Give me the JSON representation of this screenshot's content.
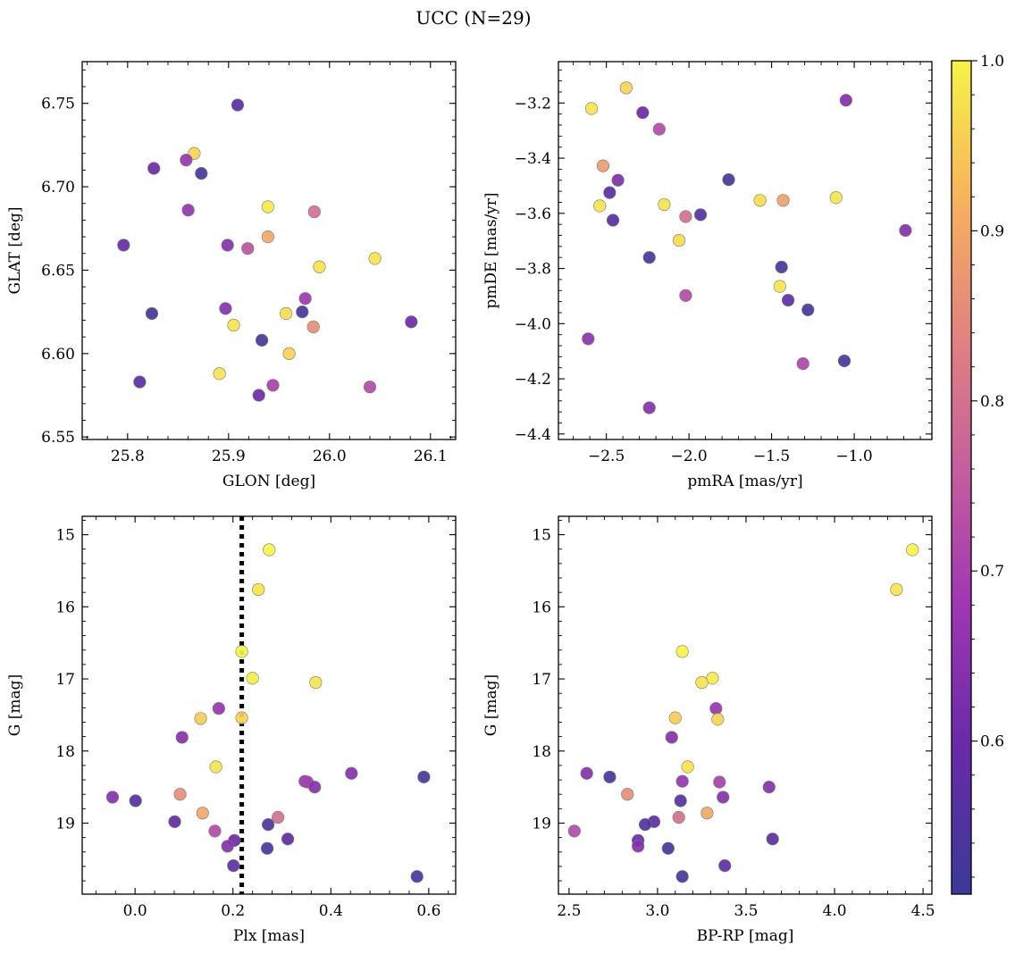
{
  "title": "UCC (N=29)",
  "colorbar": {
    "cmap": "plasma",
    "range": [
      0.51,
      1.0
    ],
    "ticks": [
      0.6,
      0.7,
      0.8,
      0.9,
      1.0
    ],
    "tick_labels": [
      "0.6",
      "0.7",
      "0.8",
      "0.9",
      "1.0"
    ]
  },
  "chart_data": [
    {
      "type": "scatter",
      "panel": "top-left",
      "xlabel": "GLON [deg]",
      "ylabel": "GLAT [deg]",
      "xlim": [
        25.755,
        26.125
      ],
      "ylim": [
        6.5485,
        6.775
      ],
      "xticks": [
        25.8,
        25.9,
        26.0,
        26.1
      ],
      "xtick_labels": [
        "25.8",
        "25.9",
        "26.0",
        "26.1"
      ],
      "yticks": [
        6.55,
        6.6,
        6.65,
        6.7,
        6.75
      ],
      "ytick_labels": [
        "6.55",
        "6.60",
        "6.65",
        "6.70",
        "6.75"
      ],
      "invert_y": false,
      "vline": null,
      "points": [
        {
          "x": 25.909,
          "y": 6.749,
          "c": 0.57
        },
        {
          "x": 25.866,
          "y": 6.72,
          "c": 0.96
        },
        {
          "x": 25.858,
          "y": 6.716,
          "c": 0.67
        },
        {
          "x": 25.826,
          "y": 6.711,
          "c": 0.6
        },
        {
          "x": 25.873,
          "y": 6.708,
          "c": 0.53
        },
        {
          "x": 25.939,
          "y": 6.688,
          "c": 0.99
        },
        {
          "x": 25.86,
          "y": 6.686,
          "c": 0.66
        },
        {
          "x": 25.985,
          "y": 6.685,
          "c": 0.8
        },
        {
          "x": 25.939,
          "y": 6.67,
          "c": 0.9
        },
        {
          "x": 25.796,
          "y": 6.665,
          "c": 0.59
        },
        {
          "x": 25.899,
          "y": 6.665,
          "c": 0.64
        },
        {
          "x": 25.919,
          "y": 6.663,
          "c": 0.74
        },
        {
          "x": 26.045,
          "y": 6.657,
          "c": 0.98
        },
        {
          "x": 25.99,
          "y": 6.652,
          "c": 0.98
        },
        {
          "x": 25.976,
          "y": 6.633,
          "c": 0.68
        },
        {
          "x": 25.897,
          "y": 6.627,
          "c": 0.64
        },
        {
          "x": 25.824,
          "y": 6.624,
          "c": 0.52
        },
        {
          "x": 25.957,
          "y": 6.624,
          "c": 0.97
        },
        {
          "x": 25.973,
          "y": 6.625,
          "c": 0.53
        },
        {
          "x": 26.081,
          "y": 6.619,
          "c": 0.6
        },
        {
          "x": 25.905,
          "y": 6.617,
          "c": 0.98
        },
        {
          "x": 25.984,
          "y": 6.616,
          "c": 0.86
        },
        {
          "x": 25.933,
          "y": 6.608,
          "c": 0.54
        },
        {
          "x": 25.96,
          "y": 6.6,
          "c": 0.96
        },
        {
          "x": 25.891,
          "y": 6.588,
          "c": 0.98
        },
        {
          "x": 25.812,
          "y": 6.583,
          "c": 0.57
        },
        {
          "x": 25.944,
          "y": 6.581,
          "c": 0.7
        },
        {
          "x": 26.04,
          "y": 6.58,
          "c": 0.72
        },
        {
          "x": 25.93,
          "y": 6.575,
          "c": 0.6
        }
      ]
    },
    {
      "type": "scatter",
      "panel": "top-right",
      "xlabel": "pmRA [mas/yr]",
      "ylabel": "pmDE [mas/yr]",
      "xlim": [
        -2.79,
        -0.53
      ],
      "ylim": [
        -4.42,
        -3.05
      ],
      "xticks": [
        -2.5,
        -2.0,
        -1.5,
        -1.0
      ],
      "xtick_labels": [
        "−2.5",
        "−2.0",
        "−1.5",
        "−1.0"
      ],
      "yticks": [
        -4.4,
        -4.2,
        -4.0,
        -3.8,
        -3.6,
        -3.4,
        -3.2
      ],
      "ytick_labels": [
        "−4.4",
        "−4.2",
        "−4.0",
        "−3.8",
        "−3.6",
        "−3.4",
        "−3.2"
      ],
      "invert_y": false,
      "vline": null,
      "points": [
        {
          "x": -2.38,
          "y": -3.145,
          "c": 0.96
        },
        {
          "x": -2.59,
          "y": -3.22,
          "c": 0.98
        },
        {
          "x": -2.28,
          "y": -3.235,
          "c": 0.6
        },
        {
          "x": -1.05,
          "y": -3.19,
          "c": 0.64
        },
        {
          "x": -2.18,
          "y": -3.295,
          "c": 0.72
        },
        {
          "x": -2.52,
          "y": -3.428,
          "c": 0.88
        },
        {
          "x": -2.43,
          "y": -3.48,
          "c": 0.63
        },
        {
          "x": -1.76,
          "y": -3.478,
          "c": 0.53
        },
        {
          "x": -2.48,
          "y": -3.525,
          "c": 0.57
        },
        {
          "x": -1.57,
          "y": -3.553,
          "c": 0.97
        },
        {
          "x": -1.43,
          "y": -3.553,
          "c": 0.89
        },
        {
          "x": -1.11,
          "y": -3.543,
          "c": 0.98
        },
        {
          "x": -2.54,
          "y": -3.573,
          "c": 0.98
        },
        {
          "x": -2.15,
          "y": -3.568,
          "c": 0.98
        },
        {
          "x": -2.46,
          "y": -3.625,
          "c": 0.56
        },
        {
          "x": -2.02,
          "y": -3.612,
          "c": 0.8
        },
        {
          "x": -1.93,
          "y": -3.605,
          "c": 0.56
        },
        {
          "x": -0.69,
          "y": -3.662,
          "c": 0.64
        },
        {
          "x": -2.06,
          "y": -3.698,
          "c": 0.97
        },
        {
          "x": -2.24,
          "y": -3.76,
          "c": 0.54
        },
        {
          "x": -1.44,
          "y": -3.795,
          "c": 0.53
        },
        {
          "x": -1.45,
          "y": -3.865,
          "c": 0.98
        },
        {
          "x": -2.02,
          "y": -3.898,
          "c": 0.72
        },
        {
          "x": -1.4,
          "y": -3.915,
          "c": 0.58
        },
        {
          "x": -1.28,
          "y": -3.95,
          "c": 0.53
        },
        {
          "x": -2.61,
          "y": -4.055,
          "c": 0.65
        },
        {
          "x": -1.31,
          "y": -4.145,
          "c": 0.71
        },
        {
          "x": -1.06,
          "y": -4.135,
          "c": 0.53
        },
        {
          "x": -2.24,
          "y": -4.305,
          "c": 0.64
        }
      ]
    },
    {
      "type": "scatter",
      "panel": "bottom-left",
      "xlabel": "Plx [mas]",
      "ylabel": "G [mag]",
      "xlim": [
        -0.108,
        0.655
      ],
      "ylim": [
        19.985,
        14.745
      ],
      "xticks": [
        0.0,
        0.2,
        0.4,
        0.6
      ],
      "xtick_labels": [
        "0.0",
        "0.2",
        "0.4",
        "0.6"
      ],
      "yticks": [
        15,
        16,
        17,
        18,
        19
      ],
      "ytick_labels": [
        "15",
        "16",
        "17",
        "18",
        "19"
      ],
      "invert_y": true,
      "vline": 0.218,
      "points": [
        {
          "x": 0.274,
          "y": 15.21,
          "c": 1.0
        },
        {
          "x": 0.252,
          "y": 15.76,
          "c": 0.98
        },
        {
          "x": 0.218,
          "y": 16.62,
          "c": 1.0
        },
        {
          "x": 0.24,
          "y": 16.99,
          "c": 0.99
        },
        {
          "x": 0.369,
          "y": 17.05,
          "c": 0.98
        },
        {
          "x": 0.171,
          "y": 17.41,
          "c": 0.67
        },
        {
          "x": 0.134,
          "y": 17.55,
          "c": 0.95
        },
        {
          "x": 0.218,
          "y": 17.54,
          "c": 0.96
        },
        {
          "x": 0.096,
          "y": 17.81,
          "c": 0.64
        },
        {
          "x": 0.165,
          "y": 18.22,
          "c": 0.98
        },
        {
          "x": 0.442,
          "y": 18.31,
          "c": 0.64
        },
        {
          "x": 0.59,
          "y": 18.36,
          "c": 0.53
        },
        {
          "x": 0.347,
          "y": 18.42,
          "c": 0.67
        },
        {
          "x": 0.352,
          "y": 18.43,
          "c": 0.7
        },
        {
          "x": 0.367,
          "y": 18.5,
          "c": 0.64
        },
        {
          "x": -0.046,
          "y": 18.64,
          "c": 0.64
        },
        {
          "x": 0.001,
          "y": 18.69,
          "c": 0.56
        },
        {
          "x": 0.092,
          "y": 18.6,
          "c": 0.86
        },
        {
          "x": 0.138,
          "y": 18.86,
          "c": 0.9
        },
        {
          "x": 0.292,
          "y": 18.92,
          "c": 0.8
        },
        {
          "x": 0.081,
          "y": 18.98,
          "c": 0.57
        },
        {
          "x": 0.272,
          "y": 19.02,
          "c": 0.55
        },
        {
          "x": 0.163,
          "y": 19.11,
          "c": 0.72
        },
        {
          "x": 0.312,
          "y": 19.22,
          "c": 0.57
        },
        {
          "x": 0.203,
          "y": 19.24,
          "c": 0.6
        },
        {
          "x": 0.189,
          "y": 19.32,
          "c": 0.64
        },
        {
          "x": 0.27,
          "y": 19.35,
          "c": 0.54
        },
        {
          "x": 0.201,
          "y": 19.59,
          "c": 0.58
        },
        {
          "x": 0.576,
          "y": 19.74,
          "c": 0.54
        }
      ]
    },
    {
      "type": "scatter",
      "panel": "bottom-right",
      "xlabel": "BP-RP [mag]",
      "ylabel": "G [mag]",
      "xlim": [
        2.44,
        4.55
      ],
      "ylim": [
        19.985,
        14.745
      ],
      "xticks": [
        2.5,
        3.0,
        3.5,
        4.0,
        4.5
      ],
      "xtick_labels": [
        "2.5",
        "3.0",
        "3.5",
        "4.0",
        "4.5"
      ],
      "yticks": [
        15,
        16,
        17,
        18,
        19
      ],
      "ytick_labels": [
        "15",
        "16",
        "17",
        "18",
        "19"
      ],
      "invert_y": true,
      "vline": null,
      "points": [
        {
          "x": 4.44,
          "y": 15.21,
          "c": 1.0
        },
        {
          "x": 4.35,
          "y": 15.76,
          "c": 0.98
        },
        {
          "x": 3.14,
          "y": 16.62,
          "c": 1.0
        },
        {
          "x": 3.31,
          "y": 16.99,
          "c": 0.99
        },
        {
          "x": 3.25,
          "y": 17.05,
          "c": 0.98
        },
        {
          "x": 3.33,
          "y": 17.41,
          "c": 0.67
        },
        {
          "x": 3.1,
          "y": 17.54,
          "c": 0.95
        },
        {
          "x": 3.34,
          "y": 17.56,
          "c": 0.96
        },
        {
          "x": 3.08,
          "y": 17.81,
          "c": 0.64
        },
        {
          "x": 3.17,
          "y": 18.22,
          "c": 0.98
        },
        {
          "x": 2.6,
          "y": 18.31,
          "c": 0.64
        },
        {
          "x": 2.73,
          "y": 18.36,
          "c": 0.53
        },
        {
          "x": 3.14,
          "y": 18.42,
          "c": 0.67
        },
        {
          "x": 3.35,
          "y": 18.43,
          "c": 0.7
        },
        {
          "x": 3.63,
          "y": 18.5,
          "c": 0.64
        },
        {
          "x": 2.83,
          "y": 18.6,
          "c": 0.86
        },
        {
          "x": 3.37,
          "y": 18.64,
          "c": 0.64
        },
        {
          "x": 3.13,
          "y": 18.69,
          "c": 0.56
        },
        {
          "x": 3.28,
          "y": 18.86,
          "c": 0.9
        },
        {
          "x": 3.12,
          "y": 18.92,
          "c": 0.8
        },
        {
          "x": 2.98,
          "y": 18.98,
          "c": 0.57
        },
        {
          "x": 2.93,
          "y": 19.02,
          "c": 0.55
        },
        {
          "x": 2.53,
          "y": 19.11,
          "c": 0.72
        },
        {
          "x": 3.65,
          "y": 19.22,
          "c": 0.57
        },
        {
          "x": 2.89,
          "y": 19.24,
          "c": 0.6
        },
        {
          "x": 2.89,
          "y": 19.32,
          "c": 0.64
        },
        {
          "x": 3.06,
          "y": 19.35,
          "c": 0.54
        },
        {
          "x": 3.38,
          "y": 19.59,
          "c": 0.58
        },
        {
          "x": 3.14,
          "y": 19.74,
          "c": 0.54
        }
      ]
    }
  ]
}
